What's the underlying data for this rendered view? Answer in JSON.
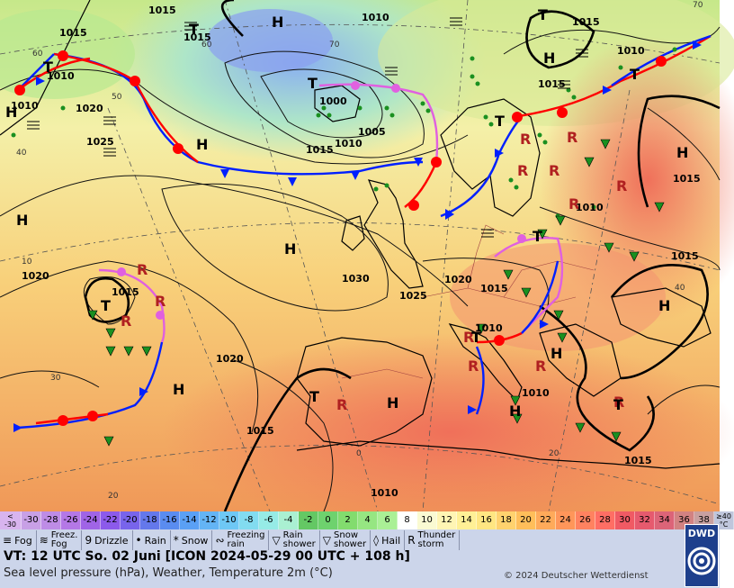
{
  "map": {
    "highs": [
      "H",
      "H",
      "H",
      "H",
      "H",
      "H",
      "H",
      "H",
      "H",
      "H",
      "H",
      "H"
    ],
    "lows": [
      "T",
      "T",
      "T",
      "T",
      "T",
      "T",
      "T",
      "T",
      "T",
      "T",
      "T"
    ],
    "isobar_labels": [
      {
        "text": "1015"
      },
      {
        "text": "1015"
      },
      {
        "text": "1015"
      },
      {
        "text": "1010"
      },
      {
        "text": "1010"
      },
      {
        "text": "1010"
      },
      {
        "text": "1020"
      },
      {
        "text": "1025"
      },
      {
        "text": "1000"
      },
      {
        "text": "1005"
      },
      {
        "text": "1010"
      },
      {
        "text": "1015"
      },
      {
        "text": "1015"
      },
      {
        "text": "1010"
      },
      {
        "text": "1015"
      },
      {
        "text": "1020"
      },
      {
        "text": "1015"
      },
      {
        "text": "1020"
      },
      {
        "text": "1030"
      },
      {
        "text": "1025"
      },
      {
        "text": "1020"
      },
      {
        "text": "1015"
      },
      {
        "text": "1015"
      },
      {
        "text": "1015"
      },
      {
        "text": "1015"
      },
      {
        "text": "1010"
      },
      {
        "text": "1010"
      },
      {
        "text": "1015"
      },
      {
        "text": "1010"
      },
      {
        "text": "1010"
      }
    ],
    "degree_labels": [
      "60",
      "70",
      "50",
      "40",
      "30",
      "20",
      "0",
      "10",
      "20",
      "40",
      "60",
      "70"
    ]
  },
  "legend": {
    "scale": {
      "first": "<\n-30",
      "cells": [
        "-30",
        "-28",
        "-26",
        "-24",
        "-22",
        "-20",
        "-18",
        "-16",
        "-14",
        "-12",
        "-10",
        "-8",
        "-6",
        "-4",
        "-2",
        "0",
        "2",
        "4",
        "6",
        "8",
        "10",
        "12",
        "14",
        "16",
        "18",
        "20",
        "22",
        "24",
        "26",
        "28",
        "30",
        "32",
        "34",
        "36",
        "38"
      ],
      "colors": [
        "#c8a0e6",
        "#be8ce6",
        "#b478e6",
        "#a064e6",
        "#8c5aeb",
        "#7864eb",
        "#6478eb",
        "#5a8cf0",
        "#5aa0f5",
        "#64b4f5",
        "#6ec8f5",
        "#82dcf0",
        "#96ebe6",
        "#aaf0d2",
        "#64c864",
        "#6ed26e",
        "#82dc6e",
        "#96e682",
        "#aaf096",
        "#ffffff",
        "#fafad2",
        "#fff5b4",
        "#fff096",
        "#ffe682",
        "#ffd26e",
        "#ffbe5a",
        "#ffaa5a",
        "#ff965a",
        "#ff8260",
        "#ff6e64",
        "#f05a64",
        "#e65a6e",
        "#dc6478",
        "#d28282",
        "#c8a0a0"
      ],
      "last": "≥40\n°C"
    },
    "weather": [
      {
        "sym": "≡",
        "label": "Fog"
      },
      {
        "sym": "≋",
        "label": "Freez.\nFog"
      },
      {
        "sym": "9",
        "label": "Drizzle"
      },
      {
        "sym": "•",
        "label": "Rain"
      },
      {
        "sym": "*",
        "label": "Snow"
      },
      {
        "sym": "∾",
        "label": "Freezing\nrain"
      },
      {
        "sym": "▽",
        "label": "Rain\nshower"
      },
      {
        "sym": "▽",
        "label": "Snow\nshower"
      },
      {
        "sym": "◊",
        "label": "Hail"
      },
      {
        "sym": "R",
        "label": "Thunder\nstorm"
      }
    ],
    "vt": "VT: 12 UTC So.  02 Juni [ICON 2024-05-29  00 UTC + 108 h]",
    "subtitle": "Sea level pressure (hPa), Weather, Temperature 2m (°C)",
    "copyright": "© 2024 Deutscher Wetterdienst",
    "logo": "DWD"
  },
  "colors": {
    "warm_front": "#ff0000",
    "cold_front": "#0020ff",
    "occlusion": "#e060e0"
  }
}
